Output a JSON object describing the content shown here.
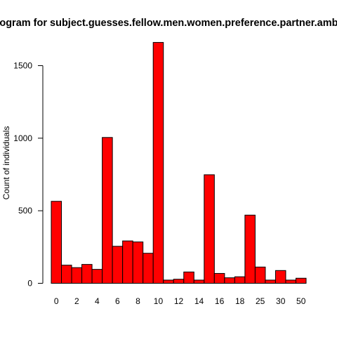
{
  "chart_data": {
    "type": "bar",
    "title": "Histogram for subject.guesses.fellow.men.women.preference.partner.ambition",
    "xlabel": "",
    "ylabel": "Count of individuals",
    "ylim": [
      0,
      1700
    ],
    "yticks": [
      0,
      500,
      1000,
      1500
    ],
    "bar_color": "#ff0000",
    "grid": false,
    "categories": [
      "0",
      "1",
      "2",
      "3",
      "4",
      "5",
      "6",
      "7",
      "8",
      "9",
      "10",
      "11",
      "12",
      "13",
      "14",
      "15",
      "16",
      "17",
      "18",
      "20",
      "25",
      "27",
      "30",
      "35",
      "50"
    ],
    "x_tick_labels": [
      "0",
      "2",
      "4",
      "6",
      "8",
      "10",
      "12",
      "14",
      "16",
      "18",
      "25",
      "30",
      "50"
    ],
    "values": [
      565,
      125,
      108,
      130,
      96,
      1005,
      255,
      292,
      285,
      207,
      1660,
      22,
      28,
      78,
      22,
      748,
      68,
      38,
      45,
      470,
      112,
      22,
      88,
      22,
      35
    ]
  }
}
